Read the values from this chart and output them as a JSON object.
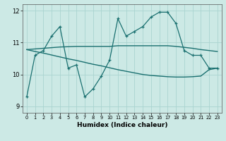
{
  "title": "",
  "xlabel": "Humidex (Indice chaleur)",
  "ylabel": "",
  "xlim": [
    -0.5,
    23.5
  ],
  "ylim": [
    8.8,
    12.2
  ],
  "yticks": [
    9,
    10,
    11,
    12
  ],
  "xticks": [
    0,
    1,
    2,
    3,
    4,
    5,
    6,
    7,
    8,
    9,
    10,
    11,
    12,
    13,
    14,
    15,
    16,
    17,
    18,
    19,
    20,
    21,
    22,
    23
  ],
  "background_color": "#cce9e5",
  "grid_color": "#aad4d0",
  "line_color": "#1a7070",
  "line1_x": [
    0,
    1,
    2,
    3,
    4,
    5,
    6,
    7,
    8,
    9,
    10,
    11,
    12,
    13,
    14,
    15,
    16,
    17,
    18,
    19,
    20,
    21,
    22,
    23
  ],
  "line1_y": [
    9.3,
    10.6,
    10.75,
    11.2,
    11.5,
    10.2,
    10.3,
    9.3,
    9.55,
    9.95,
    10.45,
    11.75,
    11.2,
    11.35,
    11.5,
    11.8,
    11.95,
    11.95,
    11.6,
    10.75,
    10.6,
    10.6,
    10.2,
    10.2
  ],
  "line2_x": [
    0,
    1,
    2,
    3,
    4,
    5,
    6,
    7,
    8,
    9,
    10,
    11,
    12,
    13,
    14,
    15,
    16,
    17,
    18,
    19,
    20,
    21,
    22,
    23
  ],
  "line2_y": [
    10.78,
    10.8,
    10.82,
    10.84,
    10.86,
    10.87,
    10.88,
    10.88,
    10.88,
    10.88,
    10.88,
    10.9,
    10.9,
    10.9,
    10.9,
    10.9,
    10.9,
    10.9,
    10.88,
    10.85,
    10.82,
    10.78,
    10.75,
    10.72
  ],
  "line3_x": [
    0,
    1,
    2,
    3,
    4,
    5,
    6,
    7,
    8,
    9,
    10,
    11,
    12,
    13,
    14,
    15,
    16,
    17,
    18,
    19,
    20,
    21,
    22,
    23
  ],
  "line3_y": [
    10.78,
    10.72,
    10.67,
    10.61,
    10.55,
    10.49,
    10.44,
    10.38,
    10.32,
    10.27,
    10.21,
    10.15,
    10.1,
    10.05,
    10.0,
    9.97,
    9.95,
    9.93,
    9.92,
    9.92,
    9.93,
    9.95,
    10.15,
    10.2
  ]
}
